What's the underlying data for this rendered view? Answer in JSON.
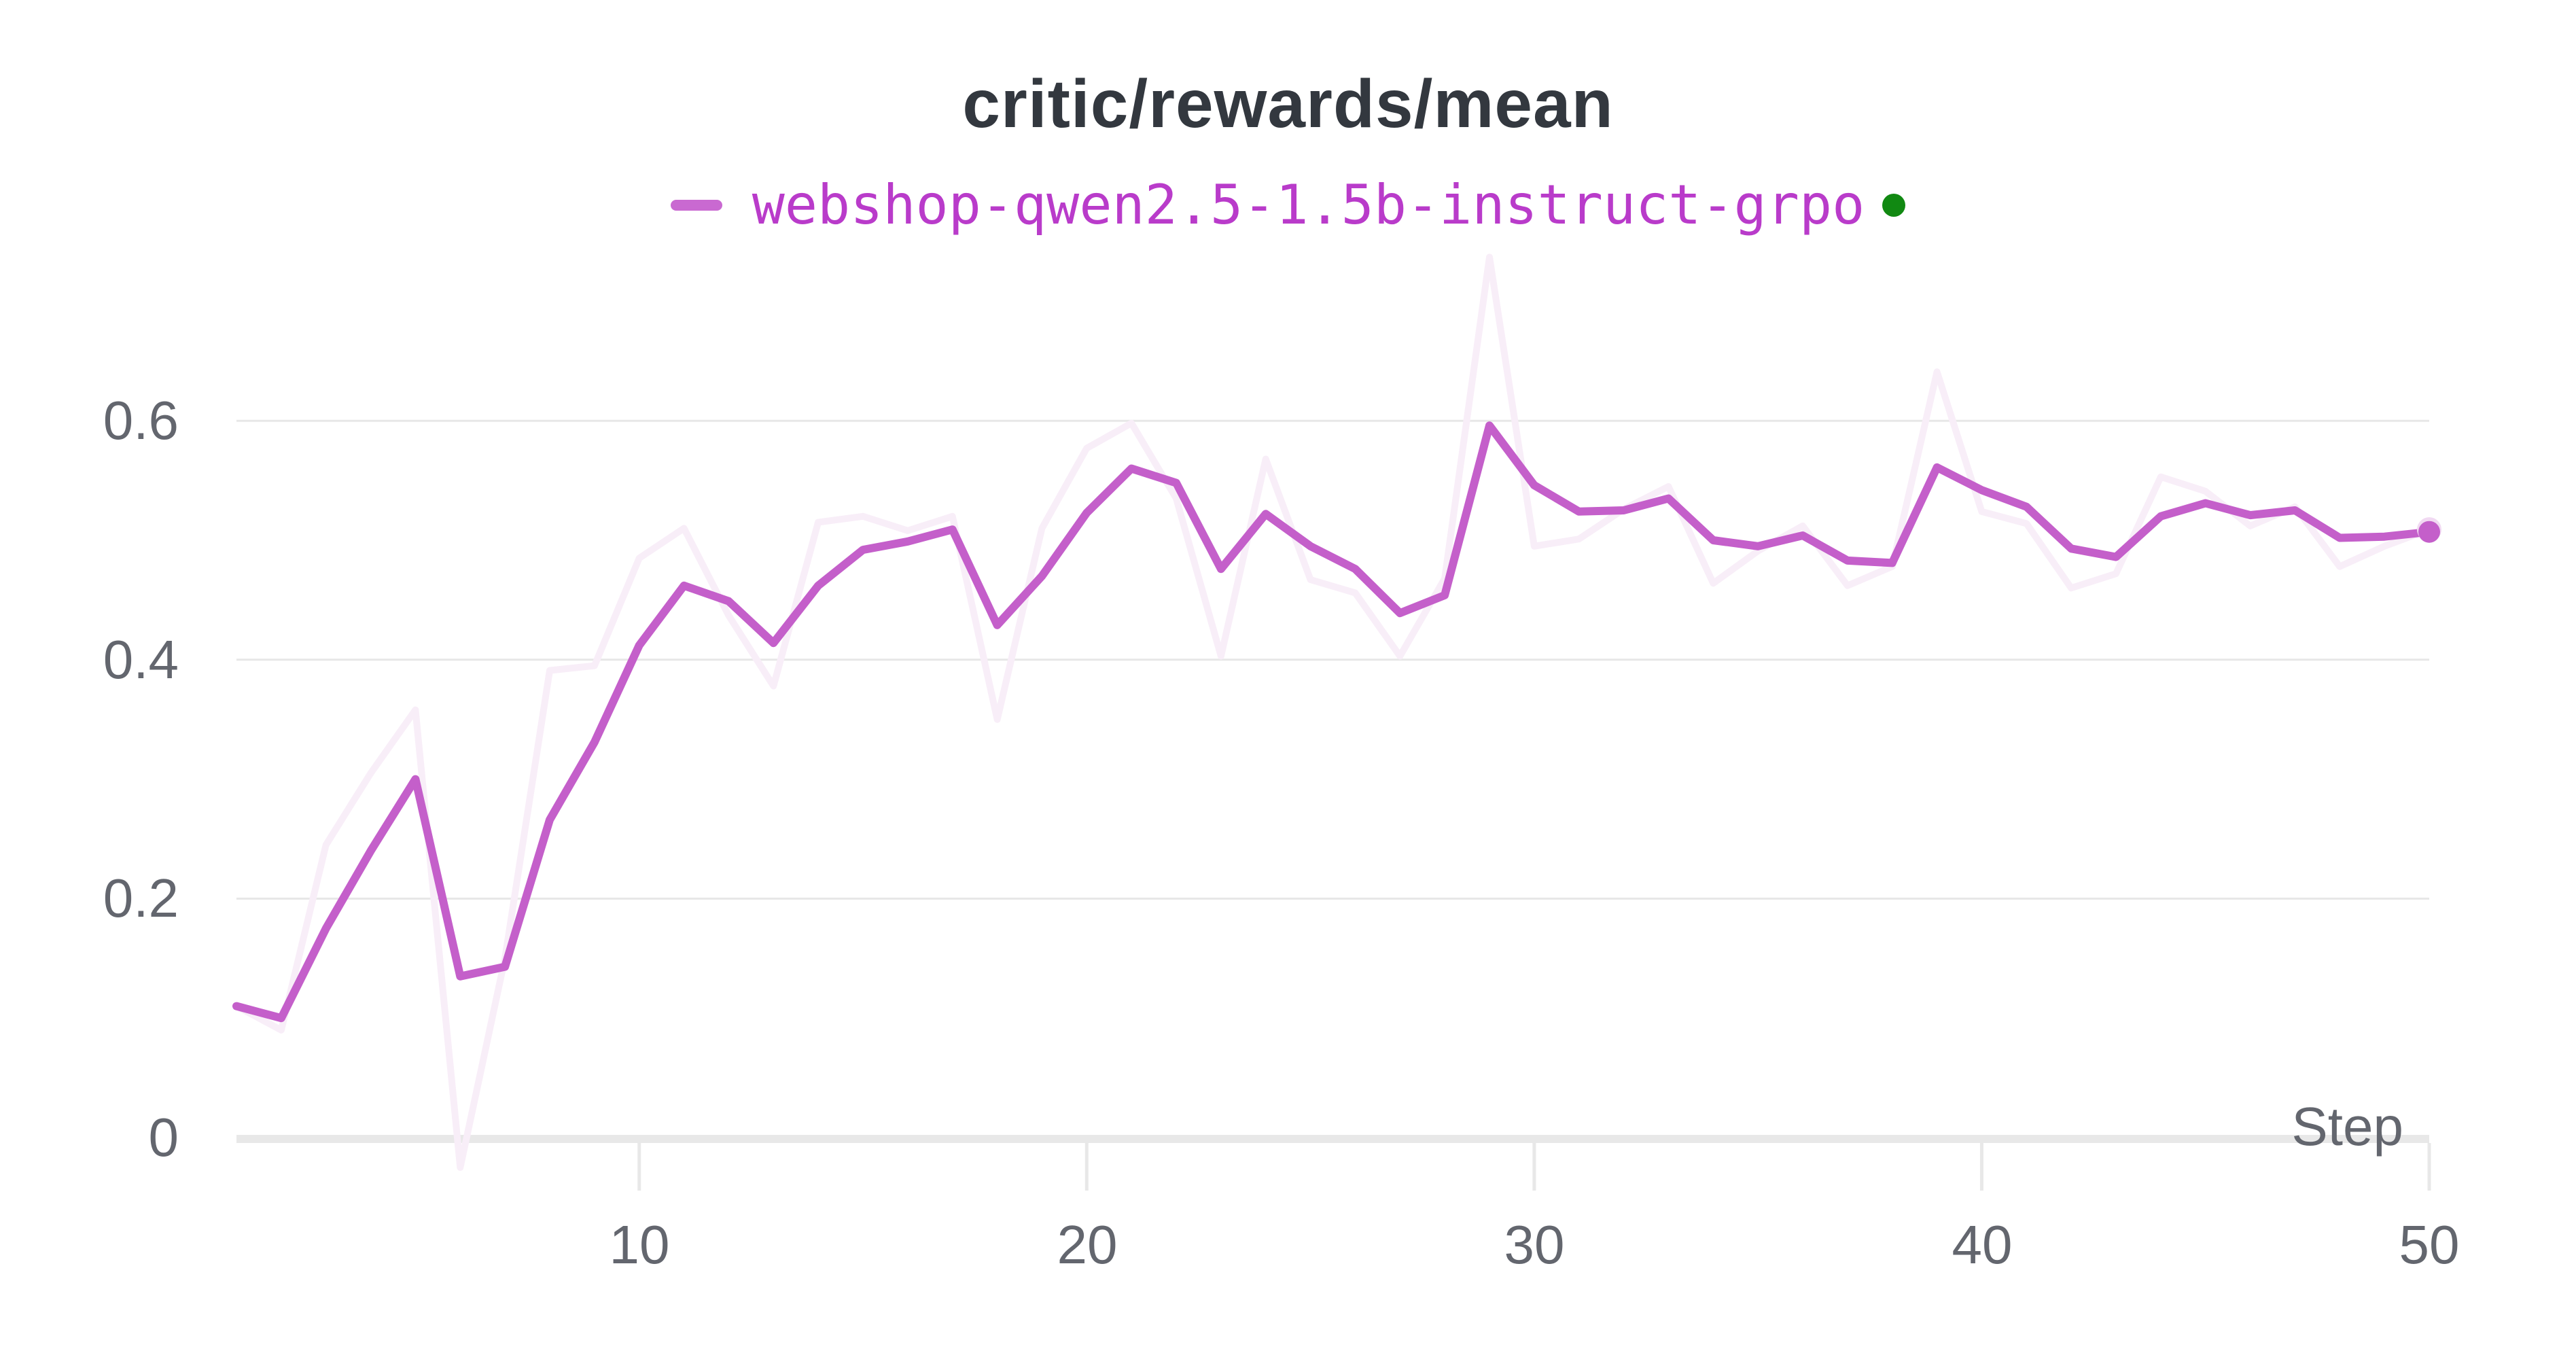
{
  "panel": {
    "title": "critic/rewards/mean"
  },
  "legend": {
    "run_label": "webshop-qwen2.5-1.5b-instruct-grpo",
    "swatch_color": "#c969d1",
    "label_color": "#b93bca",
    "status_dot_color": "#118912"
  },
  "axes": {
    "x_title": "Step",
    "y_tick_labels": [
      "0",
      "0.2",
      "0.4",
      "0.6"
    ],
    "x_tick_labels": [
      "10",
      "20",
      "30",
      "40",
      "50"
    ],
    "tick_label_color": "#63666e",
    "grid_color": "#e7e7e7",
    "axis_line_color": "#e8e8e8"
  },
  "chart_data": {
    "type": "line",
    "title": "critic/rewards/mean",
    "xlabel": "Step",
    "ylabel": "",
    "x_ticks": [
      10,
      20,
      30,
      40,
      50
    ],
    "y_ticks": [
      0,
      0.2,
      0.4,
      0.6
    ],
    "xlim": [
      1,
      50
    ],
    "ylim": [
      -0.08,
      0.78
    ],
    "grid": "horizontal",
    "legend_position": "top-center",
    "x": [
      1,
      2,
      3,
      4,
      5,
      6,
      7,
      8,
      9,
      10,
      11,
      12,
      13,
      14,
      15,
      16,
      17,
      18,
      19,
      20,
      21,
      22,
      23,
      24,
      25,
      26,
      27,
      28,
      29,
      30,
      31,
      32,
      33,
      34,
      35,
      36,
      37,
      38,
      39,
      40,
      41,
      42,
      43,
      44,
      45,
      46,
      47,
      48,
      49,
      50
    ],
    "series": [
      {
        "name": "webshop-qwen2.5-1.5b-instruct-grpo (raw)",
        "role": "raw-unsmoothed",
        "color": "#f8eef8",
        "stroke_width": 10,
        "end_marker_color": "#f1d9f2",
        "end_marker_radius": 18,
        "values": [
          0.11,
          0.09,
          0.245,
          0.305,
          0.358,
          -0.025,
          0.15,
          0.391,
          0.395,
          0.485,
          0.51,
          0.437,
          0.378,
          0.515,
          0.52,
          0.508,
          0.52,
          0.35,
          0.51,
          0.577,
          0.598,
          0.535,
          0.403,
          0.568,
          0.467,
          0.456,
          0.403,
          0.468,
          0.737,
          0.495,
          0.501,
          0.526,
          0.545,
          0.464,
          0.491,
          0.512,
          0.462,
          0.478,
          0.641,
          0.524,
          0.514,
          0.46,
          0.472,
          0.553,
          0.541,
          0.512,
          0.528,
          0.478,
          0.495,
          0.509
        ]
      },
      {
        "name": "webshop-qwen2.5-1.5b-instruct-grpo (smoothed)",
        "role": "smoothed",
        "color": "#c45fca",
        "stroke_width": 12,
        "end_marker_color": "#c45fca",
        "end_marker_radius": 16,
        "values": [
          0.11,
          0.1,
          0.175,
          0.24,
          0.3,
          0.135,
          0.143,
          0.266,
          0.331,
          0.412,
          0.462,
          0.449,
          0.414,
          0.462,
          0.492,
          0.499,
          0.509,
          0.429,
          0.47,
          0.523,
          0.56,
          0.548,
          0.476,
          0.522,
          0.495,
          0.476,
          0.439,
          0.454,
          0.596,
          0.546,
          0.524,
          0.525,
          0.535,
          0.5,
          0.495,
          0.504,
          0.483,
          0.481,
          0.561,
          0.542,
          0.528,
          0.493,
          0.486,
          0.52,
          0.531,
          0.521,
          0.525,
          0.502,
          0.503,
          0.507
        ]
      }
    ]
  }
}
